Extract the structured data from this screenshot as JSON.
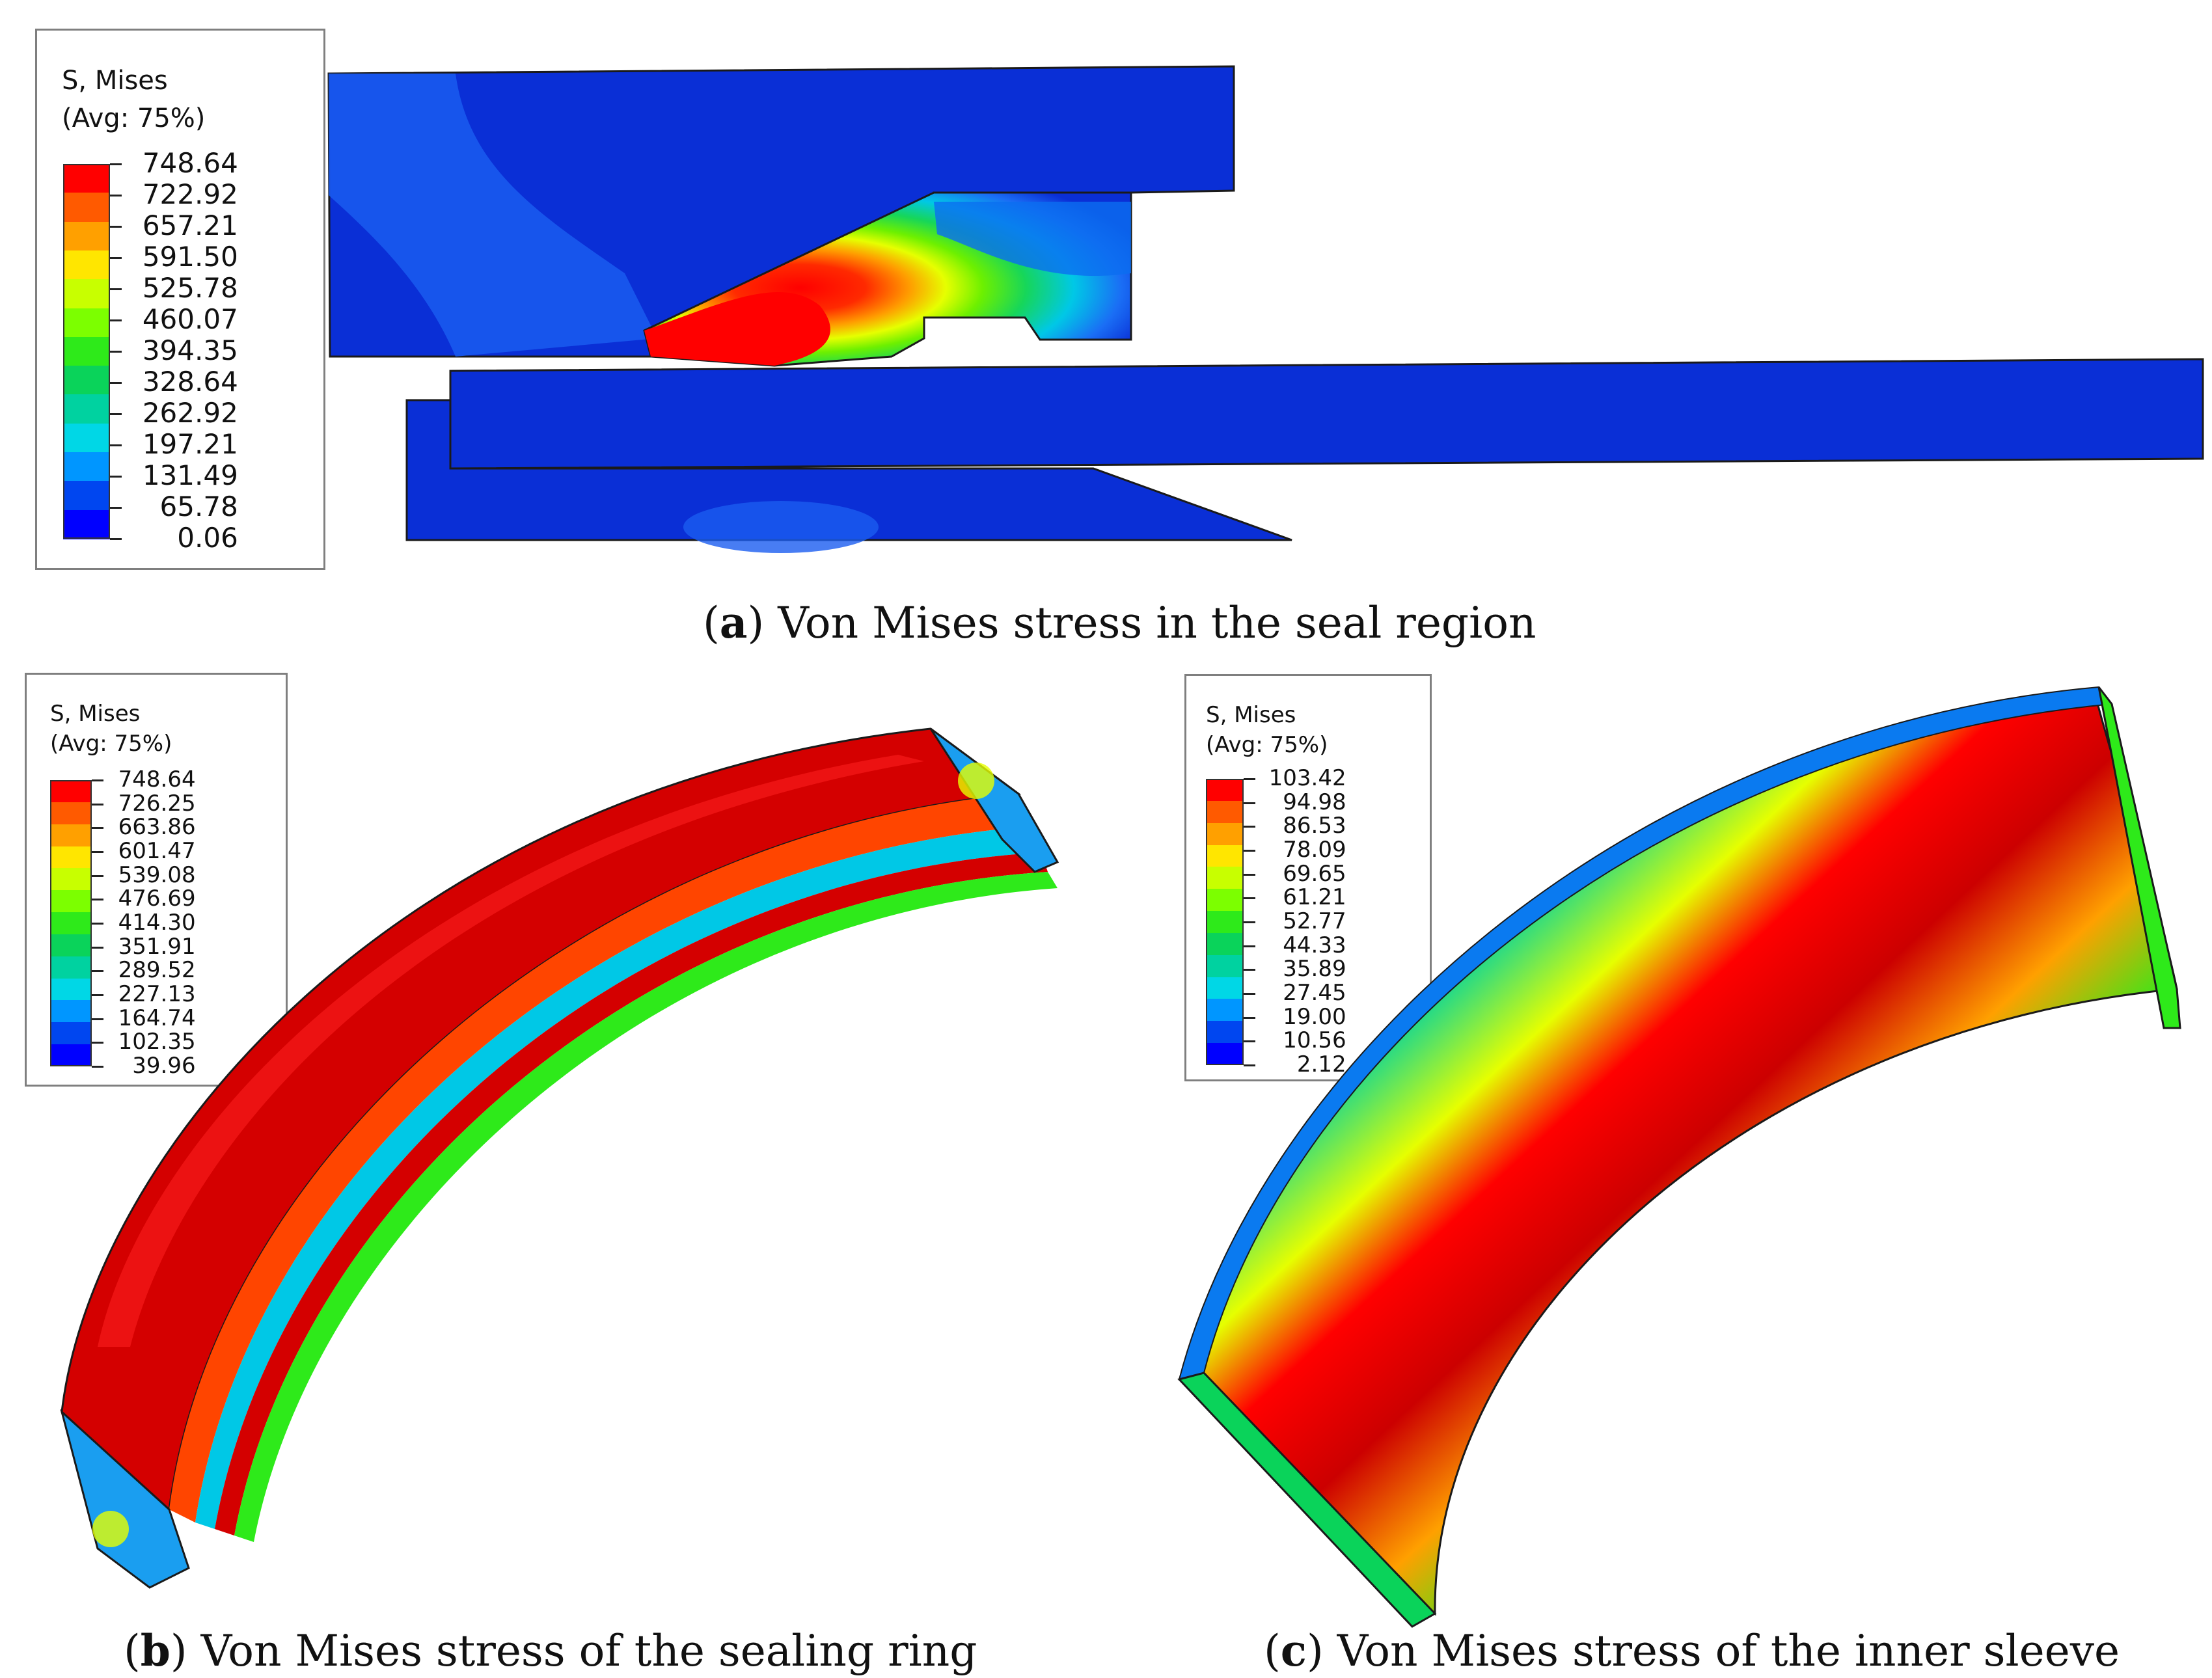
{
  "panel_a": {
    "legend": {
      "title": "S, Mises",
      "subtitle": "(Avg: 75%)",
      "values": [
        "748.64",
        "722.92",
        "657.21",
        "591.50",
        "525.78",
        "460.07",
        "394.35",
        "328.64",
        "262.92",
        "197.21",
        "131.49",
        "65.78",
        "0.06"
      ]
    },
    "caption": {
      "letter": "a",
      "text": "Von Mises stress in the seal region"
    }
  },
  "panel_b": {
    "legend": {
      "title": "S, Mises",
      "subtitle": "(Avg: 75%)",
      "values": [
        "748.64",
        "726.25",
        "663.86",
        "601.47",
        "539.08",
        "476.69",
        "414.30",
        "351.91",
        "289.52",
        "227.13",
        "164.74",
        "102.35",
        "39.96"
      ]
    },
    "caption": {
      "letter": "b",
      "text": "Von Mises stress of the sealing ring"
    }
  },
  "panel_c": {
    "legend": {
      "title": "S, Mises",
      "subtitle": "(Avg: 75%)",
      "values": [
        "103.42",
        "94.98",
        "86.53",
        "78.09",
        "69.65",
        "61.21",
        "52.77",
        "44.33",
        "35.89",
        "27.45",
        "19.00",
        "10.56",
        "2.12"
      ]
    },
    "caption": {
      "letter": "c",
      "text": "Von Mises stress of the inner sleeve"
    }
  },
  "colormap": [
    "#ff0000",
    "#ff5a00",
    "#ffa000",
    "#ffe600",
    "#c8ff00",
    "#7cff00",
    "#2eea1a",
    "#0ad35a",
    "#00d2a0",
    "#00d7e6",
    "#0096ff",
    "#0046f0",
    "#0000ff"
  ],
  "colors": {
    "deep_blue": "#0a2fd6",
    "mid_blue": "#1a5cf0",
    "outline": "#1a1a1a"
  }
}
